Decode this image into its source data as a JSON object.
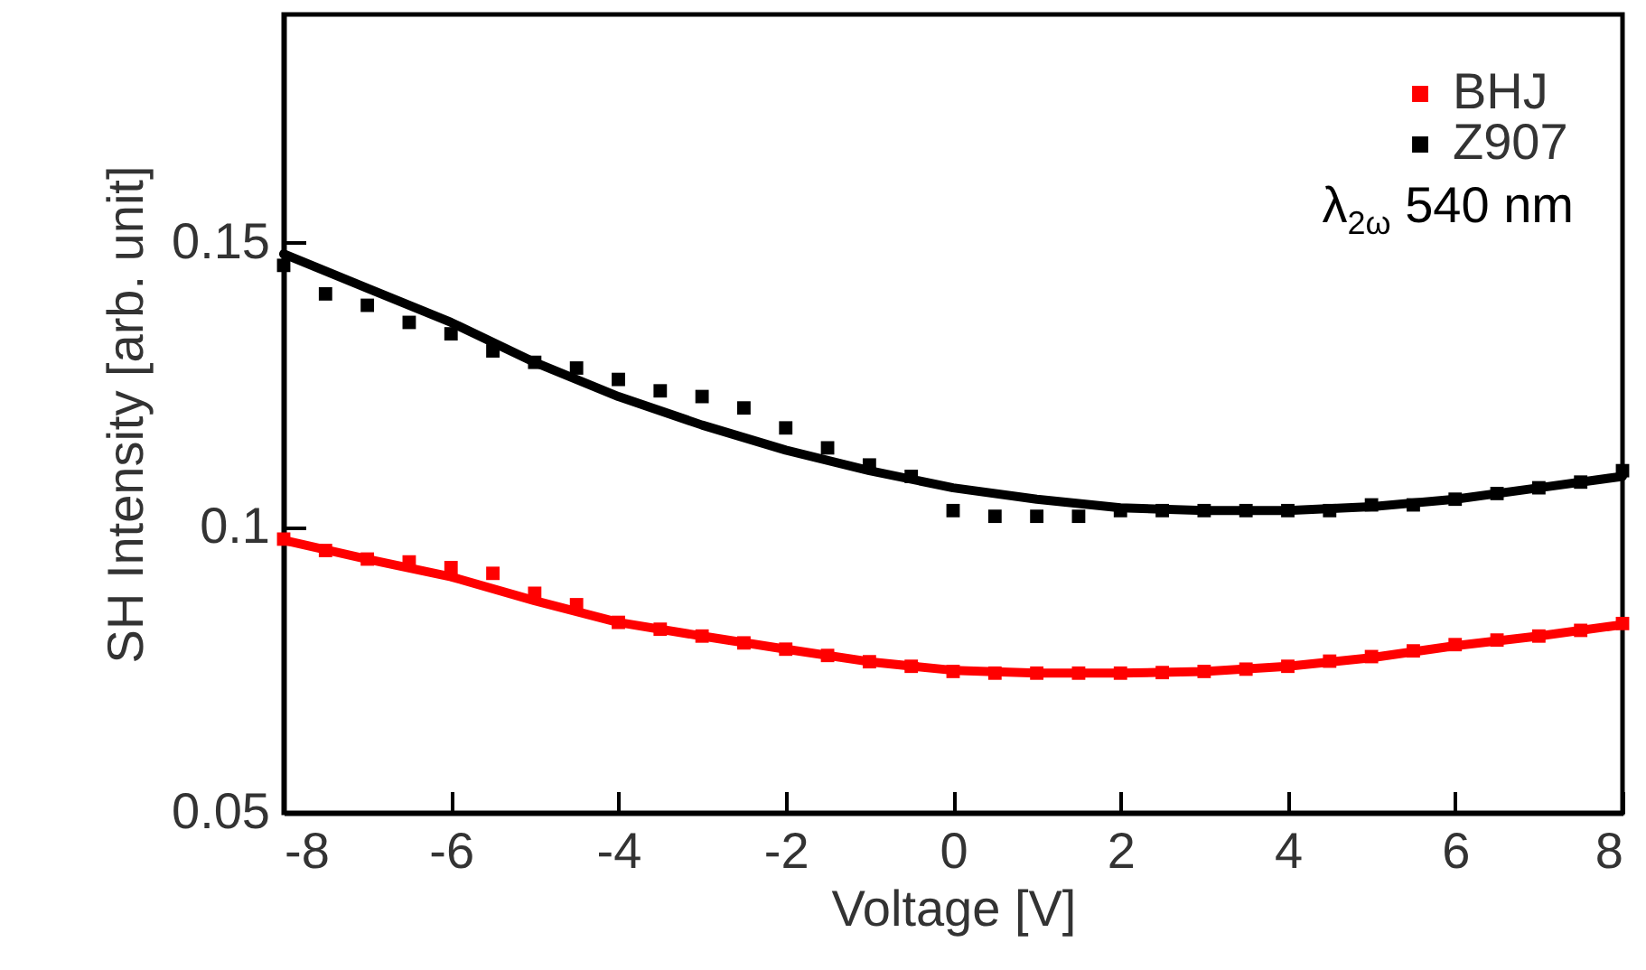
{
  "chart_data": {
    "type": "scatter",
    "xlabel": "Voltage [V]",
    "ylabel": "SH Intensity [arb. unit]",
    "annotations": [
      "λ$_{2ω}$ 540 nm"
    ],
    "xlim": [
      -8,
      8
    ],
    "xticks": [
      -8,
      -6,
      -4,
      -2,
      0,
      2,
      4,
      6,
      8
    ],
    "ylim": [
      0.05,
      0.19
    ],
    "yticks": [
      0.05,
      0.1,
      0.15
    ],
    "grid": false,
    "legend": "top right",
    "series": [
      {
        "name": "BHJ",
        "marker": "square",
        "color": "#ff0000",
        "x": [
          -8,
          -7.5,
          -7,
          -6.5,
          -6,
          -5.5,
          -5,
          -4.5,
          -4,
          -3.5,
          -3,
          -2.5,
          -2,
          -1.5,
          -1,
          -0.5,
          0,
          0.5,
          1,
          1.5,
          2,
          2.5,
          3,
          3.5,
          4,
          4.5,
          5,
          5.5,
          6,
          6.5,
          7,
          7.5,
          8
        ],
        "values": [
          0.098,
          0.096,
          0.0945,
          0.094,
          0.093,
          0.092,
          0.0885,
          0.0865,
          0.0834,
          0.0822,
          0.081,
          0.0798,
          0.0787,
          0.0776,
          0.0765,
          0.0757,
          0.0748,
          0.0745,
          0.0745,
          0.0745,
          0.0745,
          0.0746,
          0.0748,
          0.0752,
          0.0757,
          0.0766,
          0.0774,
          0.0784,
          0.0795,
          0.0803,
          0.081,
          0.082,
          0.0832
        ]
      },
      {
        "name": "Z907",
        "marker": "square",
        "color": "#000000",
        "x": [
          -8,
          -7.5,
          -7,
          -6.5,
          -6,
          -5.5,
          -5,
          -4.5,
          -4,
          -3.5,
          -3,
          -2.5,
          -2,
          -1.5,
          -1,
          -0.5,
          0,
          0.5,
          1,
          1.5,
          2,
          2.5,
          3,
          3.5,
          4,
          4.5,
          5,
          5.5,
          6,
          6.5,
          7,
          7.5,
          8
        ],
        "values": [
          0.146,
          0.141,
          0.139,
          0.136,
          0.134,
          0.131,
          0.129,
          0.128,
          0.126,
          0.124,
          0.123,
          0.121,
          0.1175,
          0.114,
          0.111,
          0.109,
          0.103,
          0.102,
          0.102,
          0.102,
          0.103,
          0.103,
          0.103,
          0.103,
          0.103,
          0.103,
          0.104,
          0.104,
          0.105,
          0.106,
          0.107,
          0.108,
          0.11
        ]
      },
      {
        "type": "line",
        "marker": "none",
        "color": "#ff0000",
        "x": [
          -8,
          -7,
          -6,
          -5,
          -4,
          -3,
          -2,
          -1,
          0,
          1,
          2,
          3,
          4,
          5,
          6,
          7,
          8
        ],
        "values": [
          0.0978,
          0.0945,
          0.0914,
          0.0872,
          0.0834,
          0.081,
          0.0787,
          0.0765,
          0.075,
          0.0745,
          0.0745,
          0.0748,
          0.0757,
          0.0772,
          0.0793,
          0.081,
          0.083
        ]
      },
      {
        "type": "line",
        "marker": "none",
        "color": "#000000",
        "x": [
          -8,
          -7,
          -6,
          -5,
          -4,
          -3,
          -2,
          -1,
          0,
          1,
          2,
          3,
          4,
          5,
          6,
          7,
          8
        ],
        "values": [
          0.148,
          0.142,
          0.136,
          0.129,
          0.123,
          0.118,
          0.1136,
          0.11,
          0.107,
          0.105,
          0.1035,
          0.103,
          0.103,
          0.1037,
          0.105,
          0.107,
          0.109
        ]
      }
    ]
  }
}
